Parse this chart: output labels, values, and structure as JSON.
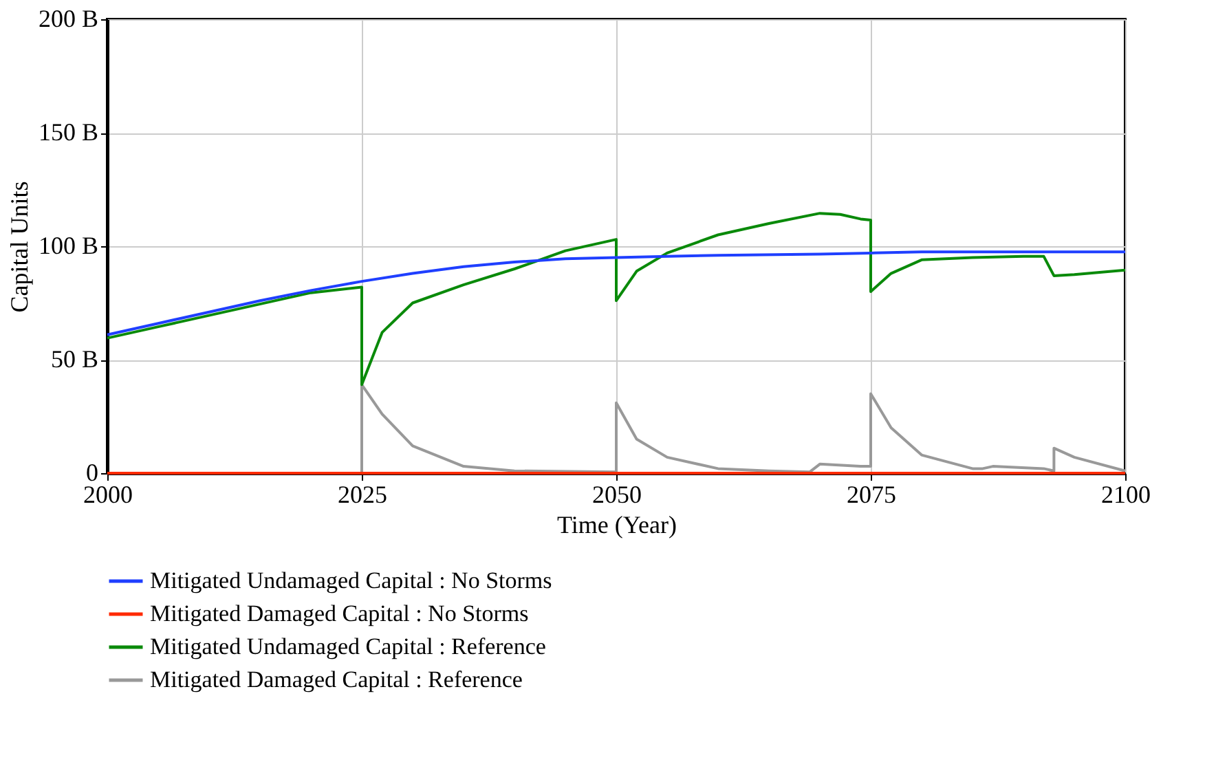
{
  "chart_data": {
    "type": "line",
    "xlabel": "Time (Year)",
    "ylabel": "Capital Units",
    "xlim": [
      2000,
      2100
    ],
    "xticks": [
      2000,
      2025,
      2050,
      2075,
      2100
    ],
    "ylim": [
      0,
      200
    ],
    "yticks": [
      {
        "value": 0,
        "label": "0"
      },
      {
        "value": 50,
        "label": "50 B"
      },
      {
        "value": 100,
        "label": "100 B"
      },
      {
        "value": 150,
        "label": "150 B"
      },
      {
        "value": 200,
        "label": "200 B"
      }
    ],
    "grid": true,
    "legend": "bottom",
    "series": [
      {
        "name": "Mitigated Undamaged Capital : No Storms",
        "color": "#1f3fff",
        "x": [
          2000,
          2005,
          2010,
          2015,
          2020,
          2025,
          2030,
          2035,
          2040,
          2045,
          2050,
          2055,
          2060,
          2070,
          2075,
          2080,
          2100
        ],
        "values": [
          61,
          66,
          71,
          76,
          80.5,
          84.5,
          88,
          91,
          93,
          94.5,
          95,
          95.5,
          96,
          96.5,
          97,
          97.5,
          97.5
        ]
      },
      {
        "name": "Mitigated Damaged Capital : No Storms",
        "color": "#ff2a00",
        "x": [
          2000,
          2100
        ],
        "values": [
          0,
          0
        ]
      },
      {
        "name": "Mitigated Undamaged Capital : Reference",
        "color": "#0a8a0a",
        "x": [
          2000,
          2005,
          2010,
          2015,
          2020,
          2025,
          2025,
          2027,
          2030,
          2035,
          2040,
          2045,
          2050,
          2050,
          2052,
          2055,
          2060,
          2065,
          2070,
          2072,
          2074,
          2075,
          2075,
          2077,
          2080,
          2085,
          2090,
          2092,
          2093,
          2095,
          2100
        ],
        "values": [
          59.5,
          64.5,
          69.5,
          74.5,
          79.5,
          82,
          39,
          62,
          75,
          83,
          90,
          98,
          103,
          76,
          89,
          97,
          105,
          110,
          114.5,
          114,
          112,
          111.5,
          80,
          88,
          94,
          95,
          95.5,
          95.5,
          87,
          87.5,
          89.5
        ]
      },
      {
        "name": "Mitigated Damaged Capital : Reference",
        "color": "#999999",
        "x": [
          2000,
          2025,
          2025,
          2027,
          2030,
          2035,
          2040,
          2050,
          2050,
          2052,
          2055,
          2060,
          2065,
          2069,
          2070,
          2074,
          2075,
          2075,
          2077,
          2080,
          2085,
          2086,
          2087,
          2092,
          2093,
          2093,
          2095,
          2100
        ],
        "values": [
          0,
          0,
          39,
          26,
          12,
          3,
          1,
          0.5,
          31,
          15,
          7,
          2,
          1,
          0.5,
          4,
          3,
          3,
          35,
          20,
          8,
          2,
          2,
          3,
          2,
          1,
          11,
          7,
          1
        ]
      }
    ]
  }
}
